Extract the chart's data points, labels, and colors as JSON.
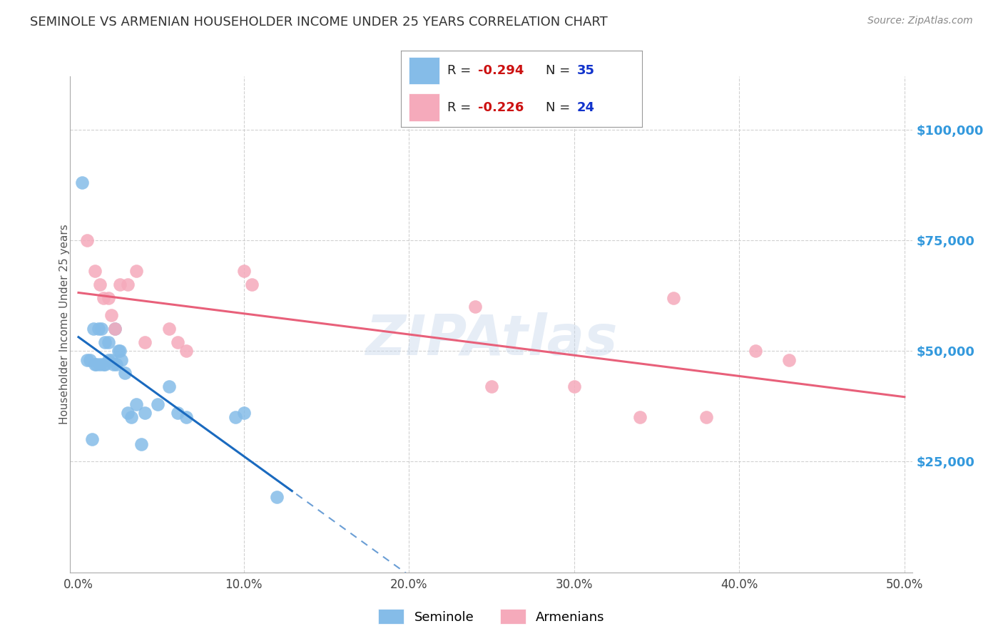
{
  "title": "SEMINOLE VS ARMENIAN HOUSEHOLDER INCOME UNDER 25 YEARS CORRELATION CHART",
  "source": "Source: ZipAtlas.com",
  "ylabel": "Householder Income Under 25 years",
  "xlabel_ticks": [
    "0.0%",
    "",
    "10.0%",
    "",
    "20.0%",
    "",
    "30.0%",
    "",
    "40.0%",
    "",
    "50.0%"
  ],
  "xlabel_vals": [
    0.0,
    0.05,
    0.1,
    0.15,
    0.2,
    0.25,
    0.3,
    0.35,
    0.4,
    0.45,
    0.5
  ],
  "xlabel_show": [
    "0.0%",
    "10.0%",
    "20.0%",
    "30.0%",
    "40.0%",
    "50.0%"
  ],
  "xlabel_show_vals": [
    0.0,
    0.1,
    0.2,
    0.3,
    0.4,
    0.5
  ],
  "ytick_labels": [
    "$25,000",
    "$50,000",
    "$75,000",
    "$100,000"
  ],
  "ytick_vals": [
    25000,
    50000,
    75000,
    100000
  ],
  "xlim": [
    -0.005,
    0.505
  ],
  "ylim": [
    0,
    112000
  ],
  "seminole_R": -0.294,
  "seminole_N": 35,
  "armenian_R": -0.226,
  "armenian_N": 24,
  "seminole_color": "#85bce8",
  "armenian_color": "#f5aabb",
  "seminole_line_color": "#1a6abf",
  "armenian_line_color": "#e8607a",
  "seminole_x": [
    0.002,
    0.005,
    0.007,
    0.008,
    0.009,
    0.01,
    0.011,
    0.012,
    0.013,
    0.014,
    0.015,
    0.016,
    0.016,
    0.018,
    0.018,
    0.02,
    0.021,
    0.022,
    0.023,
    0.024,
    0.025,
    0.026,
    0.028,
    0.03,
    0.032,
    0.035,
    0.038,
    0.04,
    0.048,
    0.055,
    0.06,
    0.065,
    0.095,
    0.1,
    0.12
  ],
  "seminole_y": [
    88000,
    48000,
    48000,
    30000,
    55000,
    47000,
    47000,
    55000,
    47000,
    55000,
    47000,
    52000,
    47000,
    52000,
    48000,
    48000,
    47000,
    55000,
    47000,
    50000,
    50000,
    48000,
    45000,
    36000,
    35000,
    38000,
    29000,
    36000,
    38000,
    42000,
    36000,
    35000,
    35000,
    36000,
    17000
  ],
  "armenian_x": [
    0.005,
    0.01,
    0.013,
    0.015,
    0.018,
    0.02,
    0.022,
    0.025,
    0.03,
    0.035,
    0.04,
    0.055,
    0.06,
    0.065,
    0.1,
    0.105,
    0.24,
    0.25,
    0.3,
    0.34,
    0.36,
    0.38,
    0.41,
    0.43
  ],
  "armenian_y": [
    75000,
    68000,
    65000,
    62000,
    62000,
    58000,
    55000,
    65000,
    65000,
    68000,
    52000,
    55000,
    52000,
    50000,
    68000,
    65000,
    60000,
    42000,
    42000,
    35000,
    62000,
    35000,
    50000,
    48000
  ],
  "sem_line_x0": 0.0,
  "sem_line_x_solid_end": 0.13,
  "sem_line_x1": 0.5,
  "arm_line_x0": 0.0,
  "arm_line_x1": 0.5,
  "background_color": "#ffffff",
  "grid_color": "#cccccc",
  "title_color": "#333333",
  "right_ytick_color": "#3399dd",
  "legend_seminole_label": "R = -0.294   N = 35",
  "legend_armenian_label": "R = -0.226   N = 24",
  "bottom_legend_seminole": "Seminole",
  "bottom_legend_armenian": "Armenians"
}
